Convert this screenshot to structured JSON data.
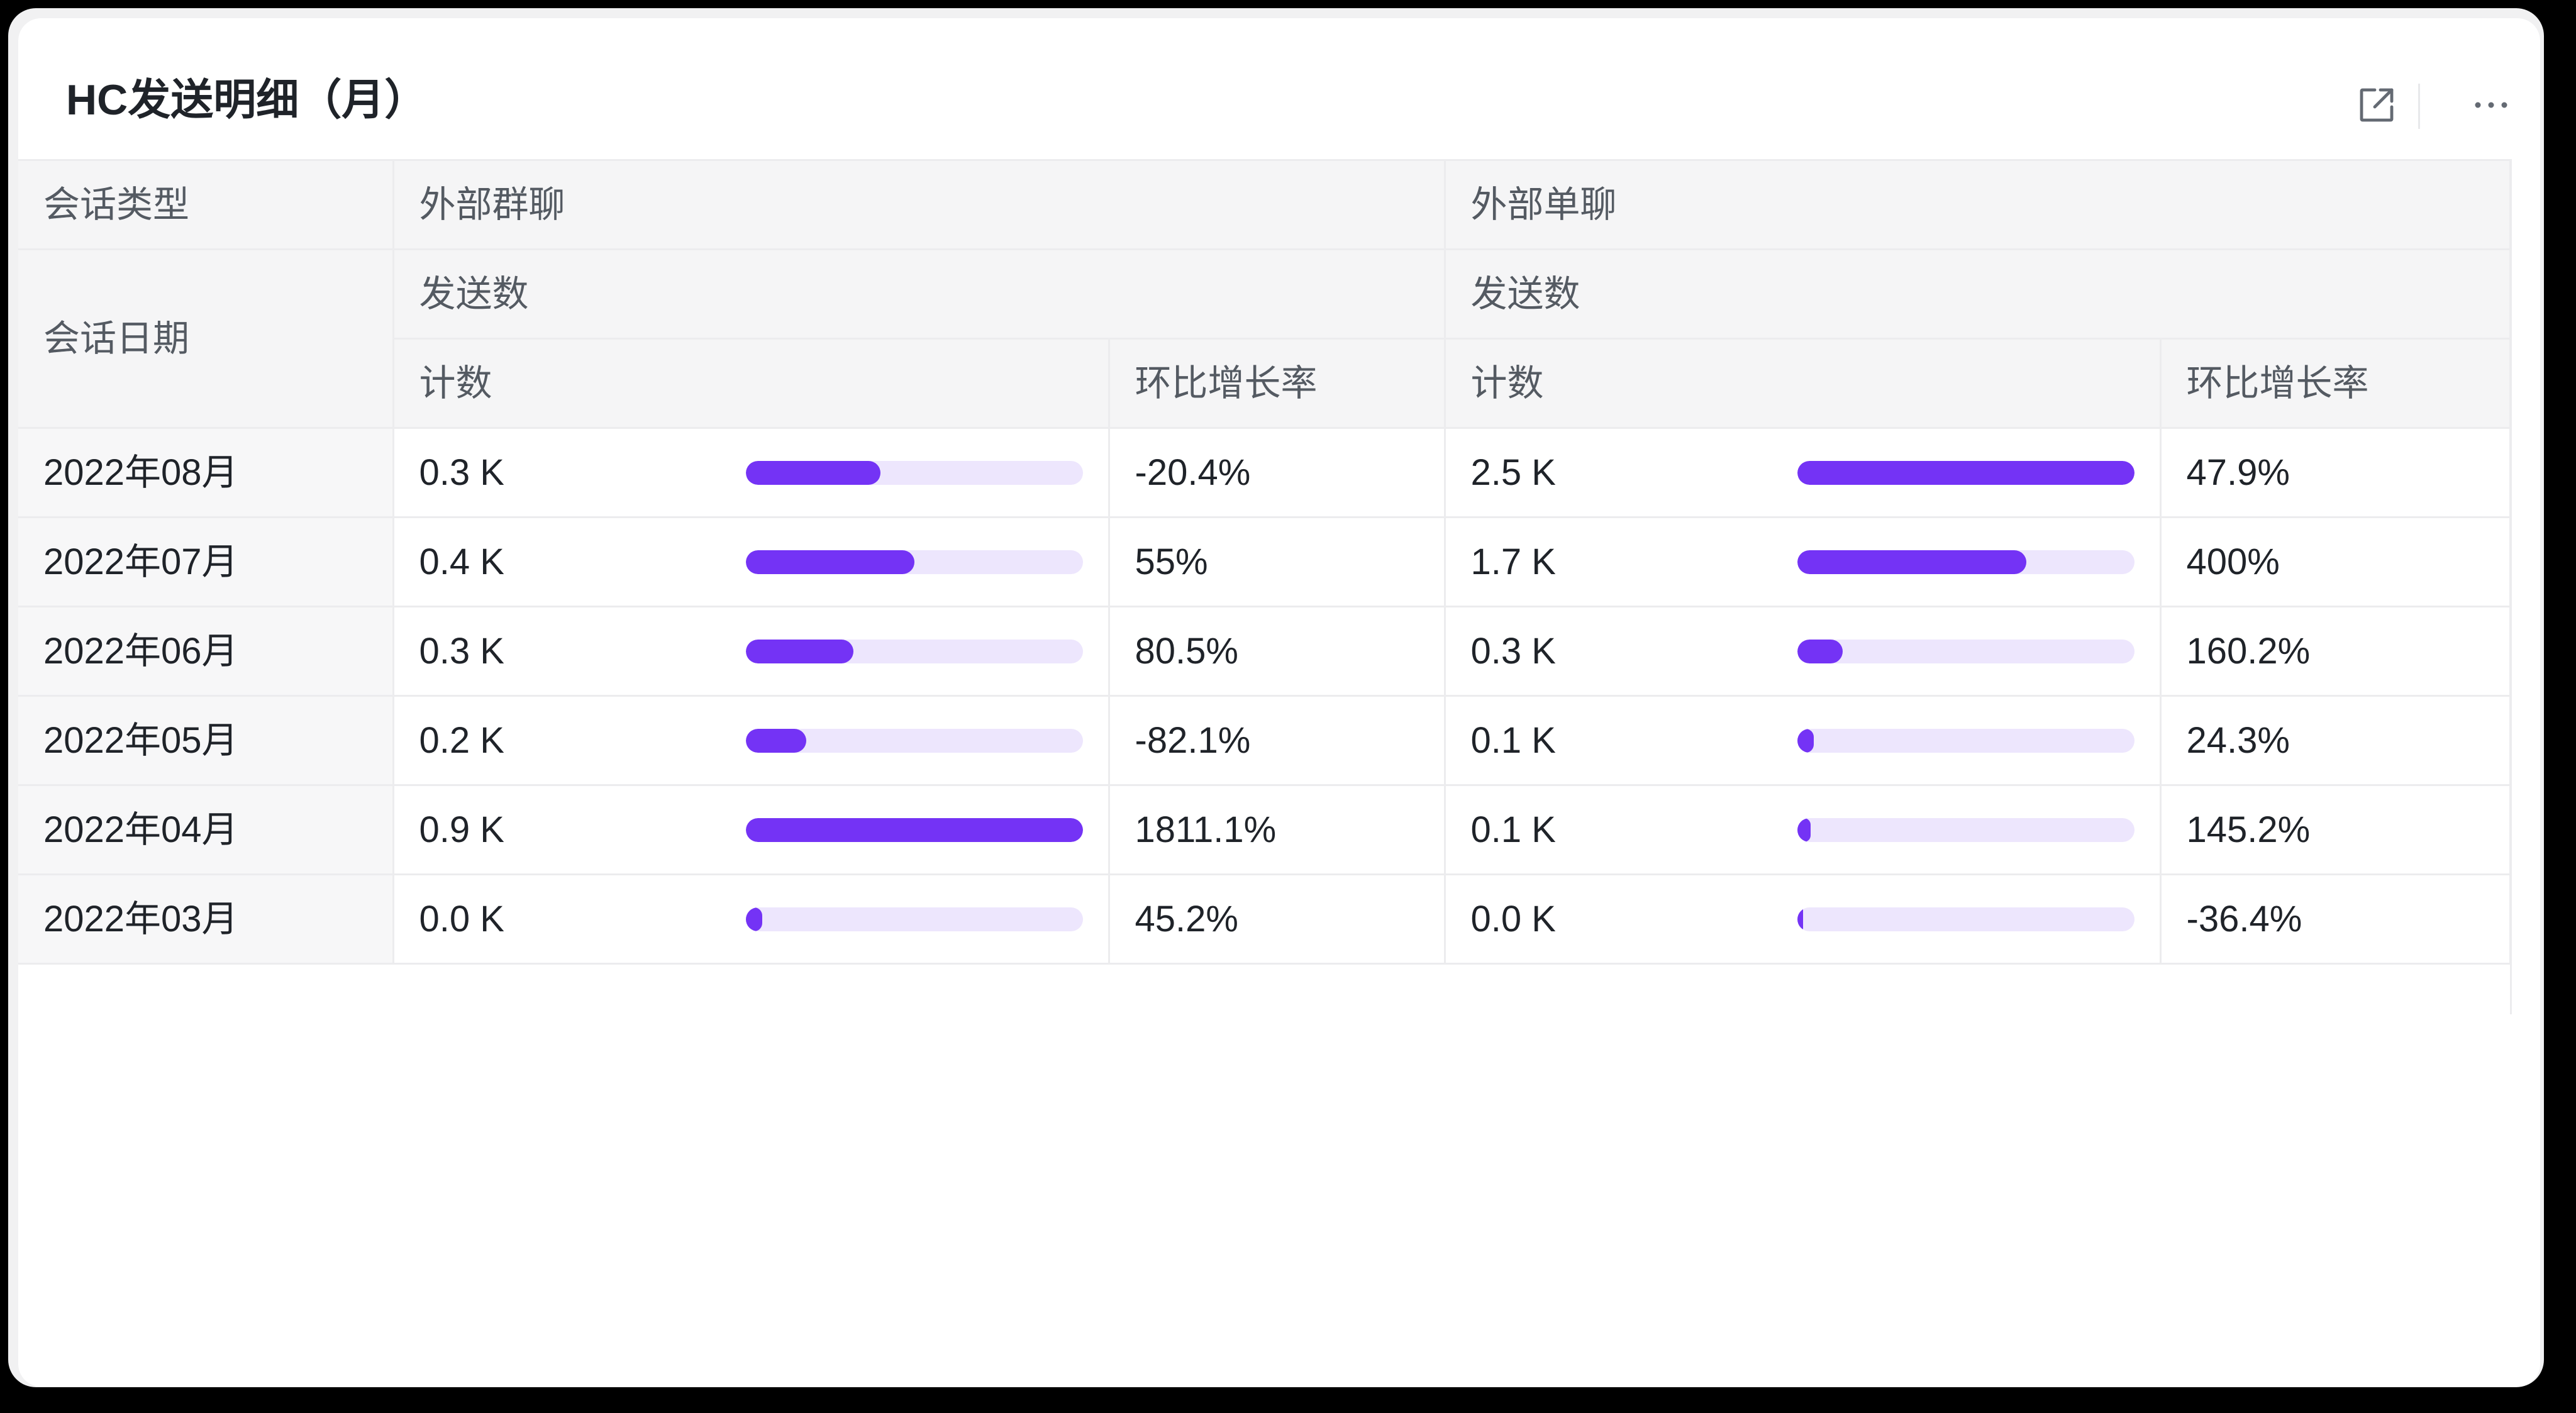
{
  "card": {
    "title": "HC发送明细（月）"
  },
  "icons": {
    "open": "external-link-icon",
    "more": "more-horizontal-icon"
  },
  "colors": {
    "bar_fill": "#7433f5",
    "bar_track": "#ede6fd",
    "header_bg": "#f5f5f6",
    "text": "#1f2329"
  },
  "table": {
    "row_dim_1": "会话类型",
    "row_dim_2": "会话日期",
    "groups": [
      "外部群聊",
      "外部单聊"
    ],
    "measure": "发送数",
    "sub_columns": [
      "计数",
      "环比增长率"
    ],
    "rows": [
      {
        "date": "2022年08月",
        "group": {
          "count": "0.3 K",
          "bar": 0.4,
          "growth": "-20.4%"
        },
        "single": {
          "count": "2.5 K",
          "bar": 1.0,
          "growth": "47.9%"
        }
      },
      {
        "date": "2022年07月",
        "group": {
          "count": "0.4 K",
          "bar": 0.5,
          "growth": "55%"
        },
        "single": {
          "count": "1.7 K",
          "bar": 0.68,
          "growth": "400%"
        }
      },
      {
        "date": "2022年06月",
        "group": {
          "count": "0.3 K",
          "bar": 0.32,
          "growth": "80.5%"
        },
        "single": {
          "count": "0.3 K",
          "bar": 0.135,
          "growth": "160.2%"
        }
      },
      {
        "date": "2022年05月",
        "group": {
          "count": "0.2 K",
          "bar": 0.18,
          "growth": "-82.1%"
        },
        "single": {
          "count": "0.1 K",
          "bar": 0.05,
          "growth": "24.3%"
        }
      },
      {
        "date": "2022年04月",
        "group": {
          "count": "0.9 K",
          "bar": 1.0,
          "growth": "1811.1%"
        },
        "single": {
          "count": "0.1 K",
          "bar": 0.04,
          "growth": "145.2%"
        }
      },
      {
        "date": "2022年03月",
        "group": {
          "count": "0.0 K",
          "bar": 0.05,
          "growth": "45.2%"
        },
        "single": {
          "count": "0.0 K",
          "bar": 0.018,
          "growth": "-36.4%"
        }
      }
    ]
  }
}
